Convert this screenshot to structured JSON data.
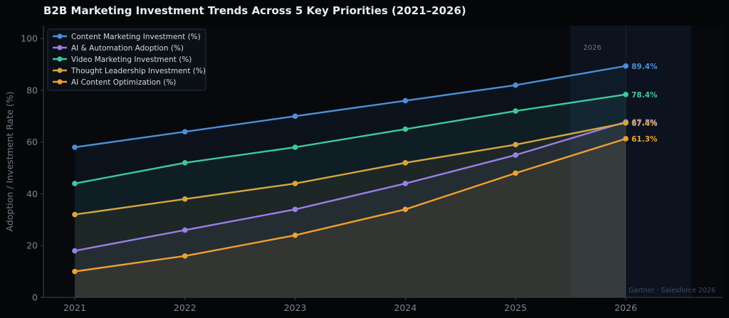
{
  "chart_data": {
    "type": "line",
    "title": "B2B Marketing Investment Trends Across 5 Key Priorities (2021–2026)",
    "xlabel": "",
    "ylabel": "Adoption / Investment Rate (%)",
    "categories": [
      "2021",
      "2022",
      "2023",
      "2024",
      "2025",
      "2026"
    ],
    "ylim": [
      0,
      105
    ],
    "yticks": [
      0,
      20,
      40,
      60,
      80,
      100
    ],
    "grid": false,
    "legend_position": "top-left",
    "highlight": {
      "category": "2026",
      "label": "2026"
    },
    "source": "Gartner · Salesforce 2026",
    "series": [
      {
        "name": "Content Marketing Investment (%)",
        "color": "#4a90d9",
        "values": [
          58,
          64,
          70,
          76,
          82,
          89.4
        ],
        "end_label": "89.4%"
      },
      {
        "name": "AI & Automation Adoption (%)",
        "color": "#9b7fe6",
        "values": [
          18,
          26,
          34,
          44,
          55,
          67.8
        ],
        "end_label": "67.8%"
      },
      {
        "name": "Video Marketing Investment (%)",
        "color": "#3ec99b",
        "values": [
          44,
          52,
          58,
          65,
          72,
          78.4
        ],
        "end_label": "78.4%"
      },
      {
        "name": "Thought Leadership Investment (%)",
        "color": "#d9a440",
        "values": [
          32,
          38,
          44,
          52,
          59,
          67.4
        ],
        "end_label": "67.4%"
      },
      {
        "name": "AI Content Optimization (%)",
        "color": "#f0a030",
        "values": [
          10,
          16,
          24,
          34,
          48,
          61.3
        ],
        "end_label": "61.3%"
      }
    ]
  }
}
